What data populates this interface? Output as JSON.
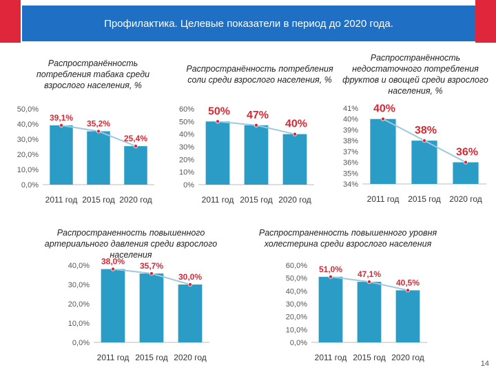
{
  "header": {
    "title": "Профилактика. Целевые показатели в период до 2020 года."
  },
  "page_number": "14",
  "colors": {
    "header_bg": "#1f6fc5",
    "accent_red": "#e0263a",
    "bar": "#2a9cc6",
    "label_red": "#d42a36",
    "line": "#9ec8e0"
  },
  "chart_data": [
    {
      "type": "bar",
      "title": "Распространённость потребления табака среди взрослого населения, %",
      "categories": [
        "2011 год",
        "2015 год",
        "2020 год"
      ],
      "values": [
        39.1,
        35.2,
        25.4
      ],
      "value_labels": [
        "39,1%",
        "35,2%",
        "25,4%"
      ],
      "ylim": [
        0,
        50
      ],
      "yticks": [
        "0,0%",
        "10,0%",
        "20,0%",
        "30,0%",
        "40,0%",
        "50,0%"
      ],
      "ytick_values": [
        0,
        10,
        20,
        30,
        40,
        50
      ]
    },
    {
      "type": "bar",
      "title": "Распространённость потребления соли среди взрослого населения, %",
      "categories": [
        "2011 год",
        "2015 год",
        "2020 год"
      ],
      "values": [
        50,
        47,
        40
      ],
      "value_labels": [
        "50%",
        "47%",
        "40%"
      ],
      "ylim": [
        0,
        60
      ],
      "yticks": [
        "0%",
        "10%",
        "20%",
        "30%",
        "40%",
        "50%",
        "60%"
      ],
      "ytick_values": [
        0,
        10,
        20,
        30,
        40,
        50,
        60
      ]
    },
    {
      "type": "bar",
      "title": "Распространённость недостаточного потребления фруктов и овощей среди взрослого населения, %",
      "categories": [
        "2011 год",
        "2015 год",
        "2020 год"
      ],
      "values": [
        40,
        38,
        36
      ],
      "value_labels": [
        "40%",
        "38%",
        "36%"
      ],
      "ylim": [
        34,
        41
      ],
      "yticks": [
        "34%",
        "35%",
        "36%",
        "37%",
        "38%",
        "39%",
        "40%",
        "41%"
      ],
      "ytick_values": [
        34,
        35,
        36,
        37,
        38,
        39,
        40,
        41
      ]
    },
    {
      "type": "bar",
      "title": "Распространенность повышенного артериального давления среди взрослого населения",
      "categories": [
        "2011 год",
        "2015 год",
        "2020 год"
      ],
      "values": [
        38.0,
        35.7,
        30.0
      ],
      "value_labels": [
        "38,0%",
        "35,7%",
        "30,0%"
      ],
      "ylim": [
        0,
        40
      ],
      "yticks": [
        "0,0%",
        "10,0%",
        "20,0%",
        "30,0%",
        "40,0%"
      ],
      "ytick_values": [
        0,
        10,
        20,
        30,
        40
      ]
    },
    {
      "type": "bar",
      "title": "Распространенность повышенного уровня холестерина среди взрослого населения",
      "categories": [
        "2011 год",
        "2015 год",
        "2020 год"
      ],
      "values": [
        51.0,
        47.1,
        40.5
      ],
      "value_labels": [
        "51,0%",
        "47,1%",
        "40,5%"
      ],
      "ylim": [
        0,
        60
      ],
      "yticks": [
        "0,0%",
        "10,0%",
        "20,0%",
        "30,0%",
        "40,0%",
        "50,0%",
        "60,0%"
      ],
      "ytick_values": [
        0,
        10,
        20,
        30,
        40,
        50,
        60
      ]
    }
  ]
}
